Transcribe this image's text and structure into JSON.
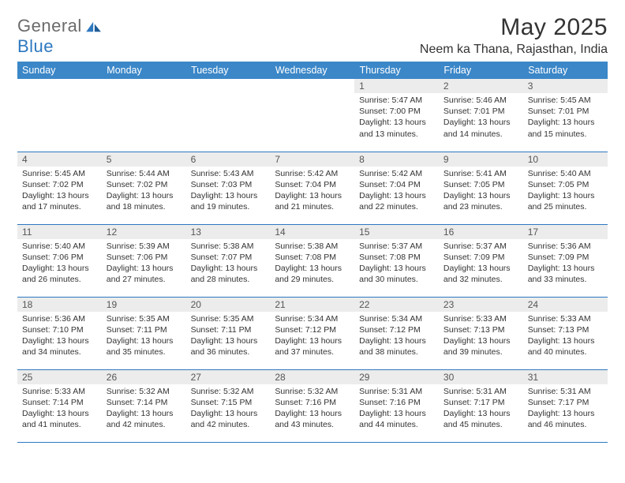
{
  "brand": {
    "text_gray": "General",
    "text_blue": "Blue"
  },
  "header": {
    "month_title": "May 2025",
    "location": "Neem ka Thana, Rajasthan, India"
  },
  "colors": {
    "header_bg": "#3b87c8",
    "header_text": "#ffffff",
    "daynum_bg": "#ececec",
    "rule": "#2d78c0",
    "logo_gray": "#6b6b6b",
    "logo_blue": "#2d78c0"
  },
  "weekdays": [
    "Sunday",
    "Monday",
    "Tuesday",
    "Wednesday",
    "Thursday",
    "Friday",
    "Saturday"
  ],
  "weeks": [
    [
      {
        "day": "",
        "empty": true
      },
      {
        "day": "",
        "empty": true
      },
      {
        "day": "",
        "empty": true
      },
      {
        "day": "",
        "empty": true
      },
      {
        "day": "1",
        "sunrise": "Sunrise: 5:47 AM",
        "sunset": "Sunset: 7:00 PM",
        "daylight": "Daylight: 13 hours and 13 minutes."
      },
      {
        "day": "2",
        "sunrise": "Sunrise: 5:46 AM",
        "sunset": "Sunset: 7:01 PM",
        "daylight": "Daylight: 13 hours and 14 minutes."
      },
      {
        "day": "3",
        "sunrise": "Sunrise: 5:45 AM",
        "sunset": "Sunset: 7:01 PM",
        "daylight": "Daylight: 13 hours and 15 minutes."
      }
    ],
    [
      {
        "day": "4",
        "sunrise": "Sunrise: 5:45 AM",
        "sunset": "Sunset: 7:02 PM",
        "daylight": "Daylight: 13 hours and 17 minutes."
      },
      {
        "day": "5",
        "sunrise": "Sunrise: 5:44 AM",
        "sunset": "Sunset: 7:02 PM",
        "daylight": "Daylight: 13 hours and 18 minutes."
      },
      {
        "day": "6",
        "sunrise": "Sunrise: 5:43 AM",
        "sunset": "Sunset: 7:03 PM",
        "daylight": "Daylight: 13 hours and 19 minutes."
      },
      {
        "day": "7",
        "sunrise": "Sunrise: 5:42 AM",
        "sunset": "Sunset: 7:04 PM",
        "daylight": "Daylight: 13 hours and 21 minutes."
      },
      {
        "day": "8",
        "sunrise": "Sunrise: 5:42 AM",
        "sunset": "Sunset: 7:04 PM",
        "daylight": "Daylight: 13 hours and 22 minutes."
      },
      {
        "day": "9",
        "sunrise": "Sunrise: 5:41 AM",
        "sunset": "Sunset: 7:05 PM",
        "daylight": "Daylight: 13 hours and 23 minutes."
      },
      {
        "day": "10",
        "sunrise": "Sunrise: 5:40 AM",
        "sunset": "Sunset: 7:05 PM",
        "daylight": "Daylight: 13 hours and 25 minutes."
      }
    ],
    [
      {
        "day": "11",
        "sunrise": "Sunrise: 5:40 AM",
        "sunset": "Sunset: 7:06 PM",
        "daylight": "Daylight: 13 hours and 26 minutes."
      },
      {
        "day": "12",
        "sunrise": "Sunrise: 5:39 AM",
        "sunset": "Sunset: 7:06 PM",
        "daylight": "Daylight: 13 hours and 27 minutes."
      },
      {
        "day": "13",
        "sunrise": "Sunrise: 5:38 AM",
        "sunset": "Sunset: 7:07 PM",
        "daylight": "Daylight: 13 hours and 28 minutes."
      },
      {
        "day": "14",
        "sunrise": "Sunrise: 5:38 AM",
        "sunset": "Sunset: 7:08 PM",
        "daylight": "Daylight: 13 hours and 29 minutes."
      },
      {
        "day": "15",
        "sunrise": "Sunrise: 5:37 AM",
        "sunset": "Sunset: 7:08 PM",
        "daylight": "Daylight: 13 hours and 30 minutes."
      },
      {
        "day": "16",
        "sunrise": "Sunrise: 5:37 AM",
        "sunset": "Sunset: 7:09 PM",
        "daylight": "Daylight: 13 hours and 32 minutes."
      },
      {
        "day": "17",
        "sunrise": "Sunrise: 5:36 AM",
        "sunset": "Sunset: 7:09 PM",
        "daylight": "Daylight: 13 hours and 33 minutes."
      }
    ],
    [
      {
        "day": "18",
        "sunrise": "Sunrise: 5:36 AM",
        "sunset": "Sunset: 7:10 PM",
        "daylight": "Daylight: 13 hours and 34 minutes."
      },
      {
        "day": "19",
        "sunrise": "Sunrise: 5:35 AM",
        "sunset": "Sunset: 7:11 PM",
        "daylight": "Daylight: 13 hours and 35 minutes."
      },
      {
        "day": "20",
        "sunrise": "Sunrise: 5:35 AM",
        "sunset": "Sunset: 7:11 PM",
        "daylight": "Daylight: 13 hours and 36 minutes."
      },
      {
        "day": "21",
        "sunrise": "Sunrise: 5:34 AM",
        "sunset": "Sunset: 7:12 PM",
        "daylight": "Daylight: 13 hours and 37 minutes."
      },
      {
        "day": "22",
        "sunrise": "Sunrise: 5:34 AM",
        "sunset": "Sunset: 7:12 PM",
        "daylight": "Daylight: 13 hours and 38 minutes."
      },
      {
        "day": "23",
        "sunrise": "Sunrise: 5:33 AM",
        "sunset": "Sunset: 7:13 PM",
        "daylight": "Daylight: 13 hours and 39 minutes."
      },
      {
        "day": "24",
        "sunrise": "Sunrise: 5:33 AM",
        "sunset": "Sunset: 7:13 PM",
        "daylight": "Daylight: 13 hours and 40 minutes."
      }
    ],
    [
      {
        "day": "25",
        "sunrise": "Sunrise: 5:33 AM",
        "sunset": "Sunset: 7:14 PM",
        "daylight": "Daylight: 13 hours and 41 minutes."
      },
      {
        "day": "26",
        "sunrise": "Sunrise: 5:32 AM",
        "sunset": "Sunset: 7:14 PM",
        "daylight": "Daylight: 13 hours and 42 minutes."
      },
      {
        "day": "27",
        "sunrise": "Sunrise: 5:32 AM",
        "sunset": "Sunset: 7:15 PM",
        "daylight": "Daylight: 13 hours and 42 minutes."
      },
      {
        "day": "28",
        "sunrise": "Sunrise: 5:32 AM",
        "sunset": "Sunset: 7:16 PM",
        "daylight": "Daylight: 13 hours and 43 minutes."
      },
      {
        "day": "29",
        "sunrise": "Sunrise: 5:31 AM",
        "sunset": "Sunset: 7:16 PM",
        "daylight": "Daylight: 13 hours and 44 minutes."
      },
      {
        "day": "30",
        "sunrise": "Sunrise: 5:31 AM",
        "sunset": "Sunset: 7:17 PM",
        "daylight": "Daylight: 13 hours and 45 minutes."
      },
      {
        "day": "31",
        "sunrise": "Sunrise: 5:31 AM",
        "sunset": "Sunset: 7:17 PM",
        "daylight": "Daylight: 13 hours and 46 minutes."
      }
    ]
  ]
}
